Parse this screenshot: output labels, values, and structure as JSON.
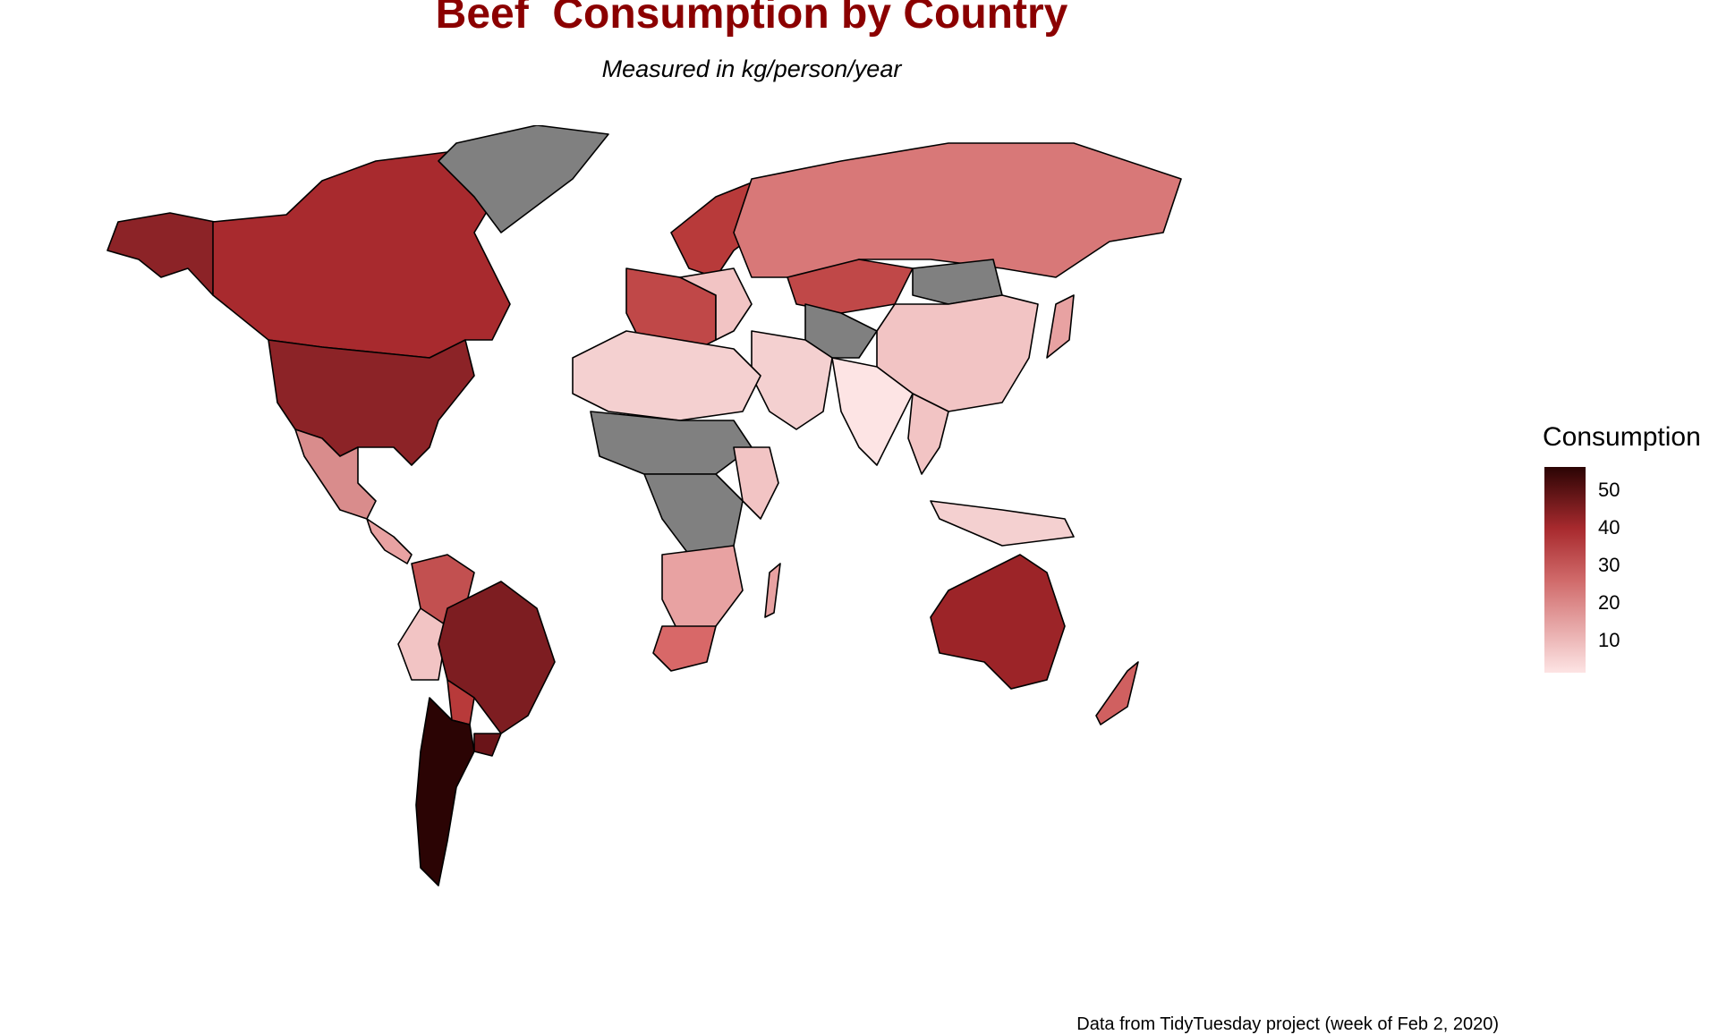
{
  "title": "Beef  Consumption by Country",
  "subtitle": "Measured in kg/person/year",
  "caption": "Data from TidyTuesday project (week of Feb 2, 2020)",
  "legend": {
    "title": "Consumption",
    "ticks": [
      "50",
      "40",
      "30",
      "20",
      "10"
    ],
    "color_low": "#fde4e4",
    "color_mid": "#b22a2a",
    "color_high": "#2b0404",
    "na_color": "#808080"
  },
  "map_data": {
    "type": "choropleth",
    "variable": "beef consumption (kg/person/year)",
    "scale_range": [
      0,
      55
    ],
    "regions": [
      {
        "region": "Argentina",
        "value": 55
      },
      {
        "region": "United States",
        "value": 37
      },
      {
        "region": "Brazil",
        "value": 38
      },
      {
        "region": "Uruguay",
        "value": 42
      },
      {
        "region": "Australia",
        "value": 33
      },
      {
        "region": "Canada",
        "value": 30
      },
      {
        "region": "Paraguay",
        "value": 26
      },
      {
        "region": "Kazakhstan",
        "value": 27
      },
      {
        "region": "New Zealand",
        "value": 23
      },
      {
        "region": "Russia",
        "value": 16
      },
      {
        "region": "Mexico",
        "value": 14
      },
      {
        "region": "South Africa",
        "value": 18
      },
      {
        "region": "China",
        "value": 6
      },
      {
        "region": "India",
        "value": 1
      },
      {
        "region": "Greenland",
        "value": null
      },
      {
        "region": "Mongolia",
        "value": null
      },
      {
        "region": "Afghanistan",
        "value": null
      }
    ]
  }
}
